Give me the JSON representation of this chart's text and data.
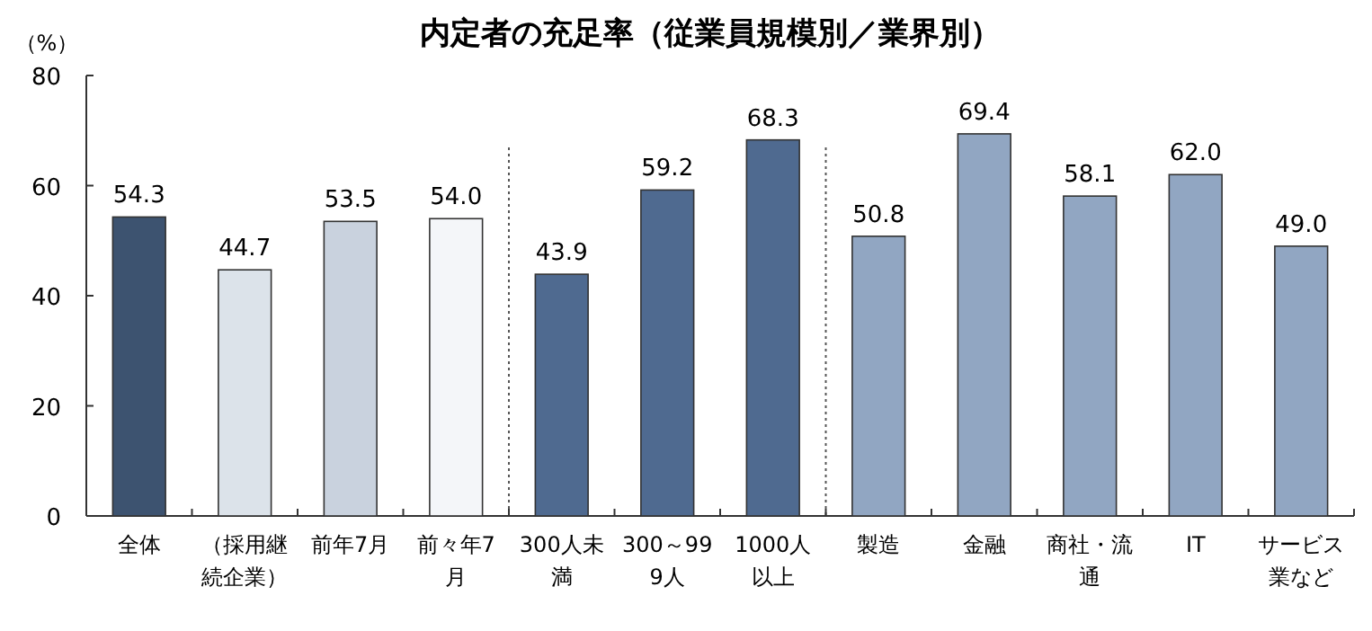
{
  "chart_data": {
    "type": "bar",
    "title": "内定者の充足率（従業員規模別／業界別）",
    "ylabel": "（%）",
    "categories": [
      "全体",
      "（採用継続企業）",
      "前年7月",
      "前々年7月",
      "300人未満",
      "300～999人",
      "1000人以上",
      "製造",
      "金融",
      "商社・流通",
      "IT",
      "サービス業など"
    ],
    "values": [
      54.3,
      44.7,
      53.5,
      54.0,
      43.9,
      59.2,
      68.3,
      50.8,
      69.4,
      58.1,
      62.0,
      49.0
    ],
    "colors": [
      "#3d5370",
      "#dce3ea",
      "#c9d2de",
      "#f4f6f9",
      "#4f6a90",
      "#4f6a90",
      "#4f6a90",
      "#91a6c2",
      "#91a6c2",
      "#91a6c2",
      "#91a6c2",
      "#91a6c2"
    ],
    "value_labels": [
      "54.3",
      "44.7",
      "53.5",
      "54.0",
      "43.9",
      "59.2",
      "68.3",
      "50.8",
      "69.4",
      "58.1",
      "62.0",
      "49.0"
    ],
    "ylim": [
      0,
      80
    ],
    "yticks": [
      0,
      20,
      40,
      60,
      80
    ]
  }
}
